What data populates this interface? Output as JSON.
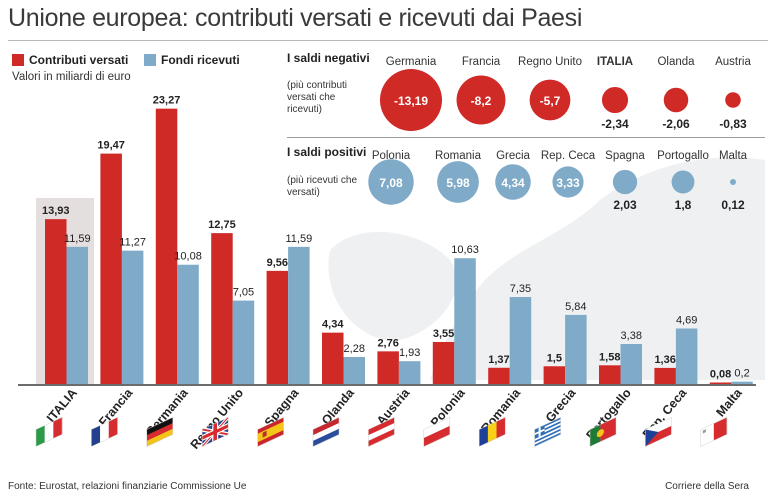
{
  "title": "Unione europea: contributi versati e ricevuti dai Paesi",
  "legend": {
    "contributi": "Contributi versati",
    "fondi": "Fondi ricevuti"
  },
  "units": "Valori in miliardi di euro",
  "colors": {
    "contributi": "#d02a27",
    "fondi": "#7fabc8",
    "italy_highlight": "#e4dede",
    "map": "#eef0f2"
  },
  "chart_data": [
    {
      "type": "bar",
      "title": "",
      "categories": [
        "ITALIA",
        "Francia",
        "Germania",
        "Regno Unito",
        "Spagna",
        "Olanda",
        "Austria",
        "Polonia",
        "Romania",
        "Grecia",
        "Portogallo",
        "Rep. Ceca",
        "Malta"
      ],
      "highlight_category": "ITALIA",
      "series": [
        {
          "name": "Contributi versati",
          "values": [
            13.93,
            19.47,
            23.27,
            12.75,
            9.56,
            4.34,
            2.76,
            3.55,
            1.37,
            1.5,
            1.58,
            1.36,
            0.08
          ]
        },
        {
          "name": "Fondi ricevuti",
          "values": [
            11.59,
            11.27,
            10.08,
            7.05,
            11.59,
            2.28,
            1.93,
            10.63,
            7.35,
            5.84,
            3.38,
            4.69,
            0.2
          ]
        }
      ],
      "value_labels": {
        "contributi": [
          "13,93",
          "19,47",
          "23,27",
          "12,75",
          "9,56",
          "4,34",
          "2,76",
          "3,55",
          "1,37",
          "1,5",
          "1,58",
          "1,36",
          "0,08"
        ],
        "fondi": [
          "11,59",
          "11,27",
          "10,08",
          "7,05",
          "11,59",
          "2,28",
          "1,93",
          "10,63",
          "7,35",
          "5,84",
          "3,38",
          "4,69",
          "0,2"
        ]
      },
      "ylim": [
        0,
        24
      ],
      "xlabel": "",
      "ylabel": "",
      "grid": false,
      "legend_position": "top-left",
      "flag_icons": [
        "italy-flag-icon",
        "france-flag-icon",
        "germany-flag-icon",
        "uk-flag-icon",
        "spain-flag-icon",
        "netherlands-flag-icon",
        "austria-flag-icon",
        "poland-flag-icon",
        "romania-flag-icon",
        "greece-flag-icon",
        "portugal-flag-icon",
        "czech-flag-icon",
        "malta-flag-icon"
      ]
    },
    {
      "type": "bubble",
      "title": "I saldi negativi",
      "subtitle": "(più contributi versati che ricevuti)",
      "categories": [
        "Germania",
        "Francia",
        "Regno Unito",
        "ITALIA",
        "Olanda",
        "Austria"
      ],
      "values": [
        -13.19,
        -8.2,
        -5.7,
        -2.34,
        -2.06,
        -0.83
      ],
      "value_labels": [
        "-13,19",
        "-8,2",
        "-5,7",
        "-2,34",
        "-2,06",
        "-0,83"
      ],
      "color": "#d02a27"
    },
    {
      "type": "bubble",
      "title": "I saldi positivi",
      "subtitle": "(più ricevuti che versati)",
      "categories": [
        "Polonia",
        "Romania",
        "Grecia",
        "Rep. Ceca",
        "Spagna",
        "Portogallo",
        "Malta"
      ],
      "values": [
        7.08,
        5.98,
        4.34,
        3.33,
        2.03,
        1.8,
        0.12
      ],
      "value_labels": [
        "7,08",
        "5,98",
        "4,34",
        "3,33",
        "2,03",
        "1,8",
        "0,12"
      ],
      "color": "#7fabc8"
    }
  ],
  "footer": {
    "source": "Fonte: Eurostat, relazioni finanziarie Commissione Ue",
    "credit": "Corriere della Sera"
  }
}
